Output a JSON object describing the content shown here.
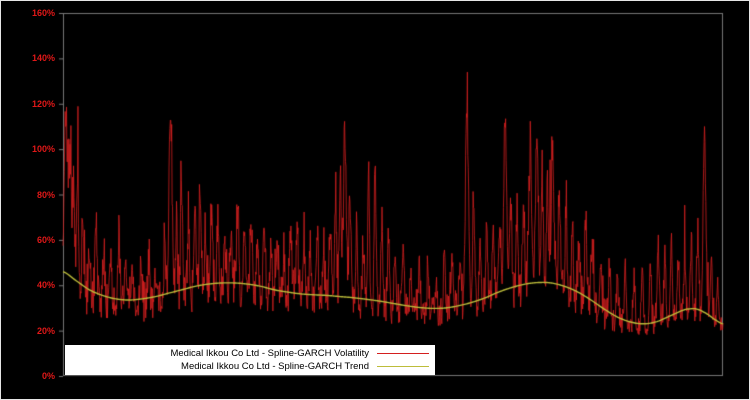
{
  "chart_data": {
    "type": "line",
    "title": "",
    "xlabel": "",
    "ylabel": "",
    "background_color": "#000000",
    "tick_label_color": "#e01818",
    "spine_color": "#777777",
    "grid": false,
    "ylim": [
      0,
      160
    ],
    "ytick_values": [
      0,
      20,
      40,
      60,
      80,
      100,
      120,
      140,
      160
    ],
    "ytick_labels": [
      "0%",
      "20%",
      "40%",
      "60%",
      "80%",
      "100%",
      "120%",
      "140%",
      "160%"
    ],
    "legend_position": "bottom-center",
    "series": [
      {
        "name": "Medical Ikkou Co Ltd - Spline-GARCH Volatility",
        "color": "#d41f1f",
        "style": "noisy",
        "noise_seed": 42,
        "steps": 1500,
        "noise_band": [
          0.68,
          1.35
        ],
        "spikes": [
          [
            0.004,
            131
          ],
          [
            0.01,
            104
          ],
          [
            0.016,
            88
          ],
          [
            0.022,
            100
          ],
          [
            0.03,
            72
          ],
          [
            0.04,
            60
          ],
          [
            0.05,
            67
          ],
          [
            0.062,
            58
          ],
          [
            0.072,
            55
          ],
          [
            0.085,
            60
          ],
          [
            0.095,
            55
          ],
          [
            0.105,
            50
          ],
          [
            0.118,
            52
          ],
          [
            0.13,
            55
          ],
          [
            0.14,
            50
          ],
          [
            0.155,
            58
          ],
          [
            0.163,
            124
          ],
          [
            0.172,
            70
          ],
          [
            0.18,
            86
          ],
          [
            0.19,
            75
          ],
          [
            0.2,
            88
          ],
          [
            0.208,
            86
          ],
          [
            0.216,
            70
          ],
          [
            0.225,
            80
          ],
          [
            0.235,
            74
          ],
          [
            0.245,
            64
          ],
          [
            0.255,
            68
          ],
          [
            0.265,
            82
          ],
          [
            0.275,
            70
          ],
          [
            0.285,
            75
          ],
          [
            0.295,
            66
          ],
          [
            0.305,
            70
          ],
          [
            0.315,
            60
          ],
          [
            0.325,
            64
          ],
          [
            0.335,
            58
          ],
          [
            0.345,
            72
          ],
          [
            0.355,
            65
          ],
          [
            0.365,
            70
          ],
          [
            0.375,
            62
          ],
          [
            0.385,
            68
          ],
          [
            0.395,
            60
          ],
          [
            0.405,
            72
          ],
          [
            0.413,
            88
          ],
          [
            0.42,
            95
          ],
          [
            0.427,
            114
          ],
          [
            0.435,
            88
          ],
          [
            0.445,
            70
          ],
          [
            0.455,
            62
          ],
          [
            0.463,
            95
          ],
          [
            0.473,
            96
          ],
          [
            0.483,
            70
          ],
          [
            0.493,
            64
          ],
          [
            0.503,
            58
          ],
          [
            0.515,
            60
          ],
          [
            0.527,
            52
          ],
          [
            0.54,
            55
          ],
          [
            0.553,
            48
          ],
          [
            0.565,
            45
          ],
          [
            0.578,
            60
          ],
          [
            0.59,
            52
          ],
          [
            0.602,
            58
          ],
          [
            0.612,
            127
          ],
          [
            0.622,
            85
          ],
          [
            0.632,
            68
          ],
          [
            0.642,
            72
          ],
          [
            0.652,
            75
          ],
          [
            0.662,
            70
          ],
          [
            0.67,
            120
          ],
          [
            0.678,
            88
          ],
          [
            0.688,
            78
          ],
          [
            0.698,
            85
          ],
          [
            0.708,
            104
          ],
          [
            0.718,
            115
          ],
          [
            0.726,
            98
          ],
          [
            0.734,
            88
          ],
          [
            0.742,
            105
          ],
          [
            0.752,
            90
          ],
          [
            0.762,
            78
          ],
          [
            0.772,
            68
          ],
          [
            0.782,
            64
          ],
          [
            0.792,
            72
          ],
          [
            0.802,
            60
          ],
          [
            0.815,
            55
          ],
          [
            0.828,
            50
          ],
          [
            0.84,
            46
          ],
          [
            0.852,
            50
          ],
          [
            0.865,
            44
          ],
          [
            0.878,
            48
          ],
          [
            0.89,
            55
          ],
          [
            0.902,
            60
          ],
          [
            0.912,
            55
          ],
          [
            0.922,
            62
          ],
          [
            0.932,
            58
          ],
          [
            0.942,
            52
          ],
          [
            0.952,
            60
          ],
          [
            0.962,
            66
          ],
          [
            0.972,
            115
          ],
          [
            0.982,
            55
          ],
          [
            0.992,
            44
          ]
        ]
      },
      {
        "name": "Medical Ikkou Co Ltd - Spline-GARCH Trend",
        "color": "#bdbd3a",
        "style": "smooth",
        "points": [
          [
            0.0,
            46
          ],
          [
            0.02,
            42
          ],
          [
            0.04,
            38
          ],
          [
            0.06,
            35.5
          ],
          [
            0.08,
            34
          ],
          [
            0.1,
            33.5
          ],
          [
            0.12,
            34
          ],
          [
            0.14,
            35
          ],
          [
            0.16,
            36.5
          ],
          [
            0.18,
            38
          ],
          [
            0.2,
            39.5
          ],
          [
            0.22,
            40.5
          ],
          [
            0.24,
            41
          ],
          [
            0.26,
            41
          ],
          [
            0.28,
            40.5
          ],
          [
            0.3,
            39.5
          ],
          [
            0.32,
            38
          ],
          [
            0.34,
            37
          ],
          [
            0.36,
            36.2
          ],
          [
            0.38,
            35.8
          ],
          [
            0.4,
            35.5
          ],
          [
            0.42,
            35
          ],
          [
            0.44,
            34.5
          ],
          [
            0.46,
            33.8
          ],
          [
            0.48,
            33
          ],
          [
            0.5,
            32
          ],
          [
            0.52,
            31
          ],
          [
            0.54,
            30.2
          ],
          [
            0.56,
            29.8
          ],
          [
            0.58,
            30
          ],
          [
            0.6,
            31
          ],
          [
            0.62,
            32.5
          ],
          [
            0.64,
            34.5
          ],
          [
            0.66,
            37
          ],
          [
            0.68,
            39
          ],
          [
            0.7,
            40.5
          ],
          [
            0.72,
            41.2
          ],
          [
            0.74,
            41
          ],
          [
            0.76,
            39.5
          ],
          [
            0.78,
            37
          ],
          [
            0.8,
            33.5
          ],
          [
            0.82,
            29.5
          ],
          [
            0.84,
            26
          ],
          [
            0.86,
            23.8
          ],
          [
            0.88,
            23
          ],
          [
            0.9,
            24
          ],
          [
            0.92,
            26.5
          ],
          [
            0.94,
            29
          ],
          [
            0.95,
            29.6
          ],
          [
            0.96,
            29.5
          ],
          [
            0.975,
            27.5
          ],
          [
            0.99,
            24.5
          ],
          [
            1.0,
            23
          ]
        ]
      }
    ]
  }
}
